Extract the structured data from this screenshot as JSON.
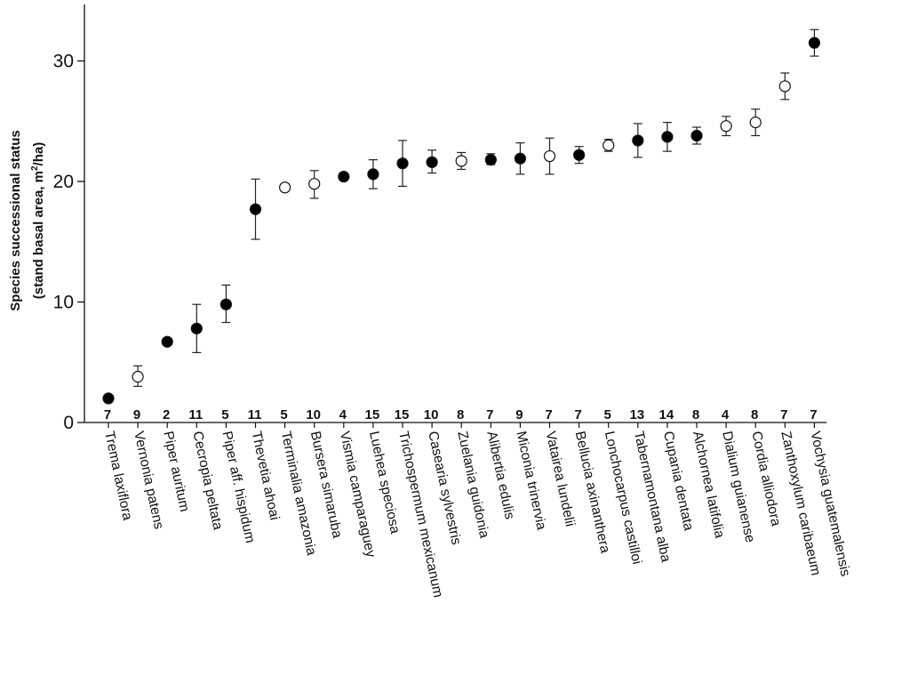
{
  "chart_data": {
    "type": "scatter",
    "ylabel_line1": "Species successional status",
    "ylabel_line2_prefix": "(stand basal area, m",
    "ylabel_line2_sup": "2",
    "ylabel_line2_suffix": "/ha)",
    "ylim": [
      0,
      34
    ],
    "yticks": [
      0,
      10,
      20,
      30
    ],
    "ytick_labels": [
      "0",
      "10",
      "20",
      "30"
    ],
    "legend": "none",
    "grid": false,
    "marker_fill_colors": {
      "filled": "#000000",
      "open": "#ffffff"
    },
    "points": [
      {
        "species": "Trema laxiflora",
        "n": "7",
        "value": 2.0,
        "lower": 1.8,
        "upper": 2.2,
        "filled": true
      },
      {
        "species": "Vernonia patens",
        "n": "9",
        "value": 3.8,
        "lower": 3.0,
        "upper": 4.7,
        "filled": false
      },
      {
        "species": "Piper auritum",
        "n": "2",
        "value": 6.7,
        "lower": 6.6,
        "upper": 6.8,
        "filled": true
      },
      {
        "species": "Cecropia peltata",
        "n": "11",
        "value": 7.8,
        "lower": 5.8,
        "upper": 9.8,
        "filled": true
      },
      {
        "species": "Piper aff. hispidum",
        "n": "5",
        "value": 9.8,
        "lower": 8.3,
        "upper": 11.4,
        "filled": true
      },
      {
        "species": "Thevetia ahoai",
        "n": "11",
        "value": 17.7,
        "lower": 15.2,
        "upper": 20.2,
        "filled": true
      },
      {
        "species": "Terminalia amazonia",
        "n": "5",
        "value": 19.5,
        "lower": 19.2,
        "upper": 19.8,
        "filled": false
      },
      {
        "species": "Bursera simaruba",
        "n": "10",
        "value": 19.8,
        "lower": 18.6,
        "upper": 20.9,
        "filled": false
      },
      {
        "species": "Vismia camparaguey",
        "n": "4",
        "value": 20.4,
        "lower": 20.2,
        "upper": 20.6,
        "filled": true
      },
      {
        "species": "Luehea speciosa",
        "n": "15",
        "value": 20.6,
        "lower": 19.4,
        "upper": 21.8,
        "filled": true
      },
      {
        "species": "Trichospermum mexicanum",
        "n": "15",
        "value": 21.5,
        "lower": 19.6,
        "upper": 23.4,
        "filled": true
      },
      {
        "species": "Casearia sylvestris",
        "n": "10",
        "value": 21.6,
        "lower": 20.7,
        "upper": 22.6,
        "filled": true
      },
      {
        "species": "Zuelania guidonia",
        "n": "8",
        "value": 21.7,
        "lower": 21.0,
        "upper": 22.4,
        "filled": false
      },
      {
        "species": "Alibertia edulis",
        "n": "7",
        "value": 21.8,
        "lower": 21.4,
        "upper": 22.3,
        "filled": true
      },
      {
        "species": "Miconia trinervia",
        "n": "9",
        "value": 21.9,
        "lower": 20.6,
        "upper": 23.2,
        "filled": true
      },
      {
        "species": "Vatairea lundelii",
        "n": "7",
        "value": 22.1,
        "lower": 20.6,
        "upper": 23.6,
        "filled": false
      },
      {
        "species": "Bellucia axinanthera",
        "n": "7",
        "value": 22.2,
        "lower": 21.5,
        "upper": 22.9,
        "filled": true
      },
      {
        "species": "Lonchocarpus castilloi",
        "n": "5",
        "value": 23.0,
        "lower": 22.5,
        "upper": 23.5,
        "filled": false
      },
      {
        "species": "Tabernamontana alba",
        "n": "13",
        "value": 23.4,
        "lower": 22.0,
        "upper": 24.8,
        "filled": true
      },
      {
        "species": "Cupania dentata",
        "n": "14",
        "value": 23.7,
        "lower": 22.5,
        "upper": 24.9,
        "filled": true
      },
      {
        "species": "Alchornea latifolia",
        "n": "8",
        "value": 23.8,
        "lower": 23.1,
        "upper": 24.5,
        "filled": true
      },
      {
        "species": "Dialium guianense",
        "n": "4",
        "value": 24.6,
        "lower": 23.8,
        "upper": 25.4,
        "filled": false
      },
      {
        "species": "Cordia alliodora",
        "n": "8",
        "value": 24.9,
        "lower": 23.8,
        "upper": 26.0,
        "filled": false
      },
      {
        "species": "Zanthoxylum caribaeum",
        "n": "7",
        "value": 27.9,
        "lower": 26.8,
        "upper": 29.0,
        "filled": false
      },
      {
        "species": "Vochysia guatemalensis",
        "n": "7",
        "value": 31.5,
        "lower": 30.4,
        "upper": 32.6,
        "filled": true
      }
    ]
  }
}
